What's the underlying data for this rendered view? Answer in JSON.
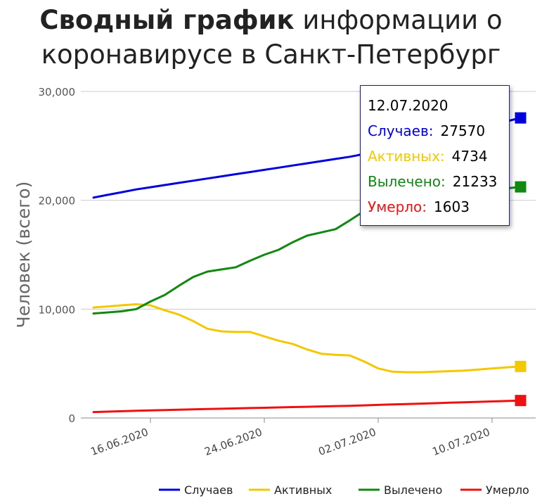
{
  "title": {
    "bold": "Сводный график",
    "line1_rest": "информации о",
    "line2": "коронавирусе в Санкт-Петербург"
  },
  "colors": {
    "cases": "#0000dd",
    "active": "#f2c800",
    "recovered": "#118811",
    "deaths": "#ee1111",
    "grid": "#cccccc"
  },
  "tooltip": {
    "date": "12.07.2020",
    "rows": [
      {
        "label": "Случаев:",
        "value": "27570",
        "color": "#0000dd"
      },
      {
        "label": "Активных:",
        "value": "4734",
        "color": "#f2c800"
      },
      {
        "label": "Вылечено:",
        "value": "21233",
        "color": "#118811"
      },
      {
        "label": "Умерло:",
        "value": "1603",
        "color": "#ee1111"
      }
    ]
  },
  "chart_data": {
    "type": "line",
    "ylabel": "Человек (всего)",
    "xlabel": "",
    "ylim": [
      0,
      30000
    ],
    "y_ticks": [
      "0",
      "10,000",
      "20,000",
      "30,000"
    ],
    "y_tick_values": [
      0,
      10000,
      20000,
      30000
    ],
    "x_tick_labels": [
      "16.06.2020",
      "24.06.2020",
      "02.07.2020",
      "10.07.2020"
    ],
    "x_tick_indices": [
      4,
      12,
      20,
      28
    ],
    "legend_position": "bottom-right",
    "grid": true,
    "x": [
      "12.06.2020",
      "13.06.2020",
      "14.06.2020",
      "15.06.2020",
      "16.06.2020",
      "17.06.2020",
      "18.06.2020",
      "19.06.2020",
      "20.06.2020",
      "21.06.2020",
      "22.06.2020",
      "23.06.2020",
      "24.06.2020",
      "25.06.2020",
      "26.06.2020",
      "27.06.2020",
      "28.06.2020",
      "29.06.2020",
      "30.06.2020",
      "01.07.2020",
      "02.07.2020",
      "03.07.2020",
      "04.07.2020",
      "05.07.2020",
      "06.07.2020",
      "07.07.2020",
      "08.07.2020",
      "09.07.2020",
      "10.07.2020",
      "11.07.2020",
      "12.07.2020"
    ],
    "series": [
      {
        "name": "Случаев",
        "key": "cases",
        "values": [
          20250,
          20500,
          20750,
          21000,
          21200,
          21400,
          21600,
          21800,
          22000,
          22200,
          22400,
          22600,
          22800,
          23000,
          23200,
          23400,
          23600,
          23800,
          24000,
          24250,
          24500,
          24750,
          25000,
          25300,
          25600,
          25900,
          26200,
          26550,
          26900,
          27250,
          27570
        ]
      },
      {
        "name": "Активных",
        "key": "active",
        "values": [
          10150,
          10250,
          10350,
          10450,
          10350,
          9900,
          9500,
          8900,
          8200,
          7950,
          7900,
          7900,
          7500,
          7100,
          6800,
          6300,
          5900,
          5800,
          5750,
          5200,
          4550,
          4250,
          4200,
          4200,
          4250,
          4300,
          4350,
          4450,
          4550,
          4650,
          4734
        ]
      },
      {
        "name": "Вылечено",
        "key": "recovered",
        "values": [
          9600,
          9700,
          9800,
          10000,
          10700,
          11300,
          12150,
          12950,
          13450,
          13650,
          13850,
          14450,
          15000,
          15450,
          16150,
          16750,
          17050,
          17350,
          18150,
          19000,
          19550,
          19850,
          20100,
          20250,
          20450,
          20600,
          20750,
          20850,
          20950,
          21100,
          21233
        ]
      },
      {
        "name": "Умерло",
        "key": "deaths",
        "values": [
          540,
          580,
          620,
          660,
          700,
          730,
          760,
          790,
          820,
          850,
          880,
          910,
          940,
          970,
          1000,
          1030,
          1060,
          1090,
          1120,
          1160,
          1200,
          1240,
          1280,
          1320,
          1360,
          1400,
          1440,
          1480,
          1520,
          1560,
          1603
        ]
      }
    ]
  }
}
